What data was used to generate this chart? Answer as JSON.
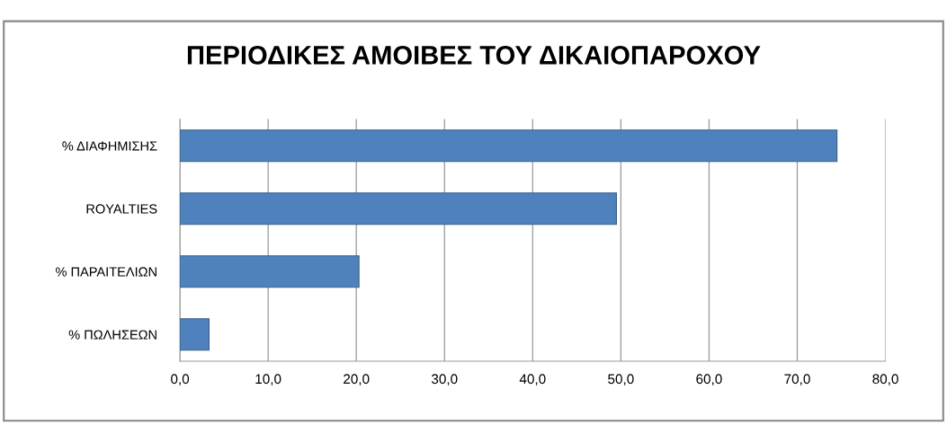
{
  "chart_data": {
    "type": "bar",
    "orientation": "horizontal",
    "title": "ΠΕΡΙΟΔΙΚΕΣ ΑΜΟΙΒΕΣ ΤΟΥ ΔΙΚΑΙΟΠΑΡΟΧΟΥ",
    "categories": [
      "% ΔΙΑΦΗΜΙΣΗΣ",
      "ROYALTIES",
      "% ΠΑΡΑΙΤΕΛΙΩΝ",
      "% ΠΩΛΗΣΕΩΝ"
    ],
    "values": [
      74.5,
      49.5,
      20.3,
      3.3
    ],
    "color": "#4f81bd",
    "xlim": [
      0,
      80
    ],
    "xticks": [
      {
        "value": 0,
        "label": "0,0"
      },
      {
        "value": 10,
        "label": "10,0"
      },
      {
        "value": 20,
        "label": "20,0"
      },
      {
        "value": 30,
        "label": "30,0"
      },
      {
        "value": 40,
        "label": "40,0"
      },
      {
        "value": 50,
        "label": "50,0"
      },
      {
        "value": 60,
        "label": "60,0"
      },
      {
        "value": 70,
        "label": "70,0"
      },
      {
        "value": 80,
        "label": "80,0"
      }
    ],
    "grid": "x",
    "legend": false
  }
}
